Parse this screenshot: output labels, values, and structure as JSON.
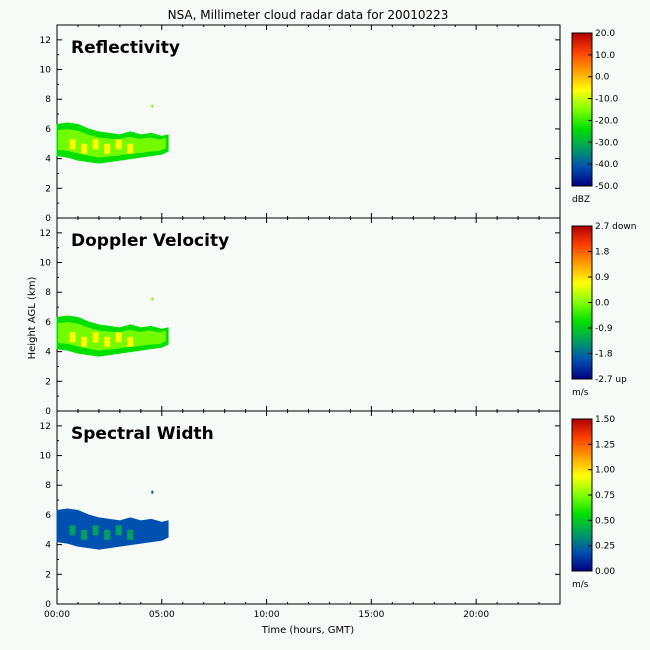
{
  "title": "NSA, Millimeter cloud radar data for 20010223",
  "xlabel": "Time (hours, GMT)",
  "ylabel": "Height AGL (km)",
  "x_ticks": [
    "00:00",
    "05:00",
    "10:00",
    "15:00",
    "20:00"
  ],
  "y_ticks": [
    "0",
    "2",
    "4",
    "6",
    "8",
    "10",
    "12"
  ],
  "colors": {
    "background": "#f7fbf7",
    "axis": "#000000"
  },
  "chart_data": [
    {
      "type": "heatmap",
      "title": "Reflectivity",
      "xlim": [
        0,
        24
      ],
      "ylim": [
        0,
        13
      ],
      "colorbar": {
        "unit": "dBZ",
        "range": [
          -50,
          20
        ],
        "labels": [
          "20.0",
          "10.0",
          "0.0",
          "-10.0",
          "-20.0",
          "-30.0",
          "-40.0",
          "-50.0"
        ],
        "stops": [
          "#000080",
          "#0050b0",
          "#00a060",
          "#00e000",
          "#80ff00",
          "#ffff00",
          "#ffa000",
          "#ff4000",
          "#b00000"
        ]
      },
      "echo": {
        "time_hours": [
          0,
          0.5,
          1,
          1.5,
          2,
          2.5,
          3,
          3.5,
          4,
          4.5,
          5,
          5.3
        ],
        "top_km": [
          6.3,
          6.4,
          6.3,
          6.0,
          5.8,
          5.7,
          5.6,
          5.8,
          5.6,
          5.7,
          5.5,
          5.6
        ],
        "base_km": [
          4.2,
          4.1,
          3.9,
          3.8,
          3.7,
          3.8,
          3.9,
          4.0,
          4.1,
          4.2,
          4.3,
          4.5
        ],
        "stray_point": {
          "time_hours": 4.5,
          "height_km": 7.5
        },
        "typical_value": -15,
        "core_value": -8
      }
    },
    {
      "type": "heatmap",
      "title": "Doppler Velocity",
      "xlim": [
        0,
        24
      ],
      "ylim": [
        0,
        13
      ],
      "colorbar": {
        "unit": "m/s",
        "range": [
          -2.7,
          2.7
        ],
        "labels": [
          "2.7 down",
          "1.8",
          "0.9",
          "0.0",
          "-0.9",
          "-1.8",
          "-2.7 up"
        ],
        "stops": [
          "#000080",
          "#0050b0",
          "#00a060",
          "#00e000",
          "#80ff00",
          "#ffff00",
          "#ffa000",
          "#ff4000",
          "#b00000"
        ]
      },
      "echo": {
        "time_hours": [
          0,
          0.5,
          1,
          1.5,
          2,
          2.5,
          3,
          3.5,
          4,
          4.5,
          5,
          5.3
        ],
        "top_km": [
          6.3,
          6.4,
          6.3,
          6.0,
          5.8,
          5.7,
          5.6,
          5.8,
          5.6,
          5.7,
          5.5,
          5.6
        ],
        "base_km": [
          4.2,
          4.1,
          3.9,
          3.8,
          3.7,
          3.8,
          3.9,
          4.0,
          4.1,
          4.2,
          4.3,
          4.5
        ],
        "stray_point": {
          "time_hours": 4.5,
          "height_km": 7.5
        },
        "typical_value": 0.3,
        "core_value": 0.5
      }
    },
    {
      "type": "heatmap",
      "title": "Spectral Width",
      "xlim": [
        0,
        24
      ],
      "ylim": [
        0,
        13
      ],
      "colorbar": {
        "unit": "m/s",
        "range": [
          0,
          1.5
        ],
        "labels": [
          "1.50",
          "1.25",
          "1.00",
          "0.75",
          "0.50",
          "0.25",
          "0.00"
        ],
        "stops": [
          "#000080",
          "#0050b0",
          "#00a060",
          "#00e000",
          "#80ff00",
          "#ffff00",
          "#ffa000",
          "#ff4000",
          "#b00000"
        ]
      },
      "echo": {
        "time_hours": [
          0,
          0.5,
          1,
          1.5,
          2,
          2.5,
          3,
          3.5,
          4,
          4.5,
          5,
          5.3
        ],
        "top_km": [
          6.3,
          6.4,
          6.3,
          6.0,
          5.8,
          5.7,
          5.6,
          5.8,
          5.6,
          5.7,
          5.5,
          5.6
        ],
        "base_km": [
          4.2,
          4.1,
          3.9,
          3.8,
          3.7,
          3.8,
          3.9,
          4.0,
          4.1,
          4.2,
          4.3,
          4.5
        ],
        "stray_point": {
          "time_hours": 4.5,
          "height_km": 7.5
        },
        "typical_value": 0.2,
        "core_value": 0.3
      }
    }
  ]
}
